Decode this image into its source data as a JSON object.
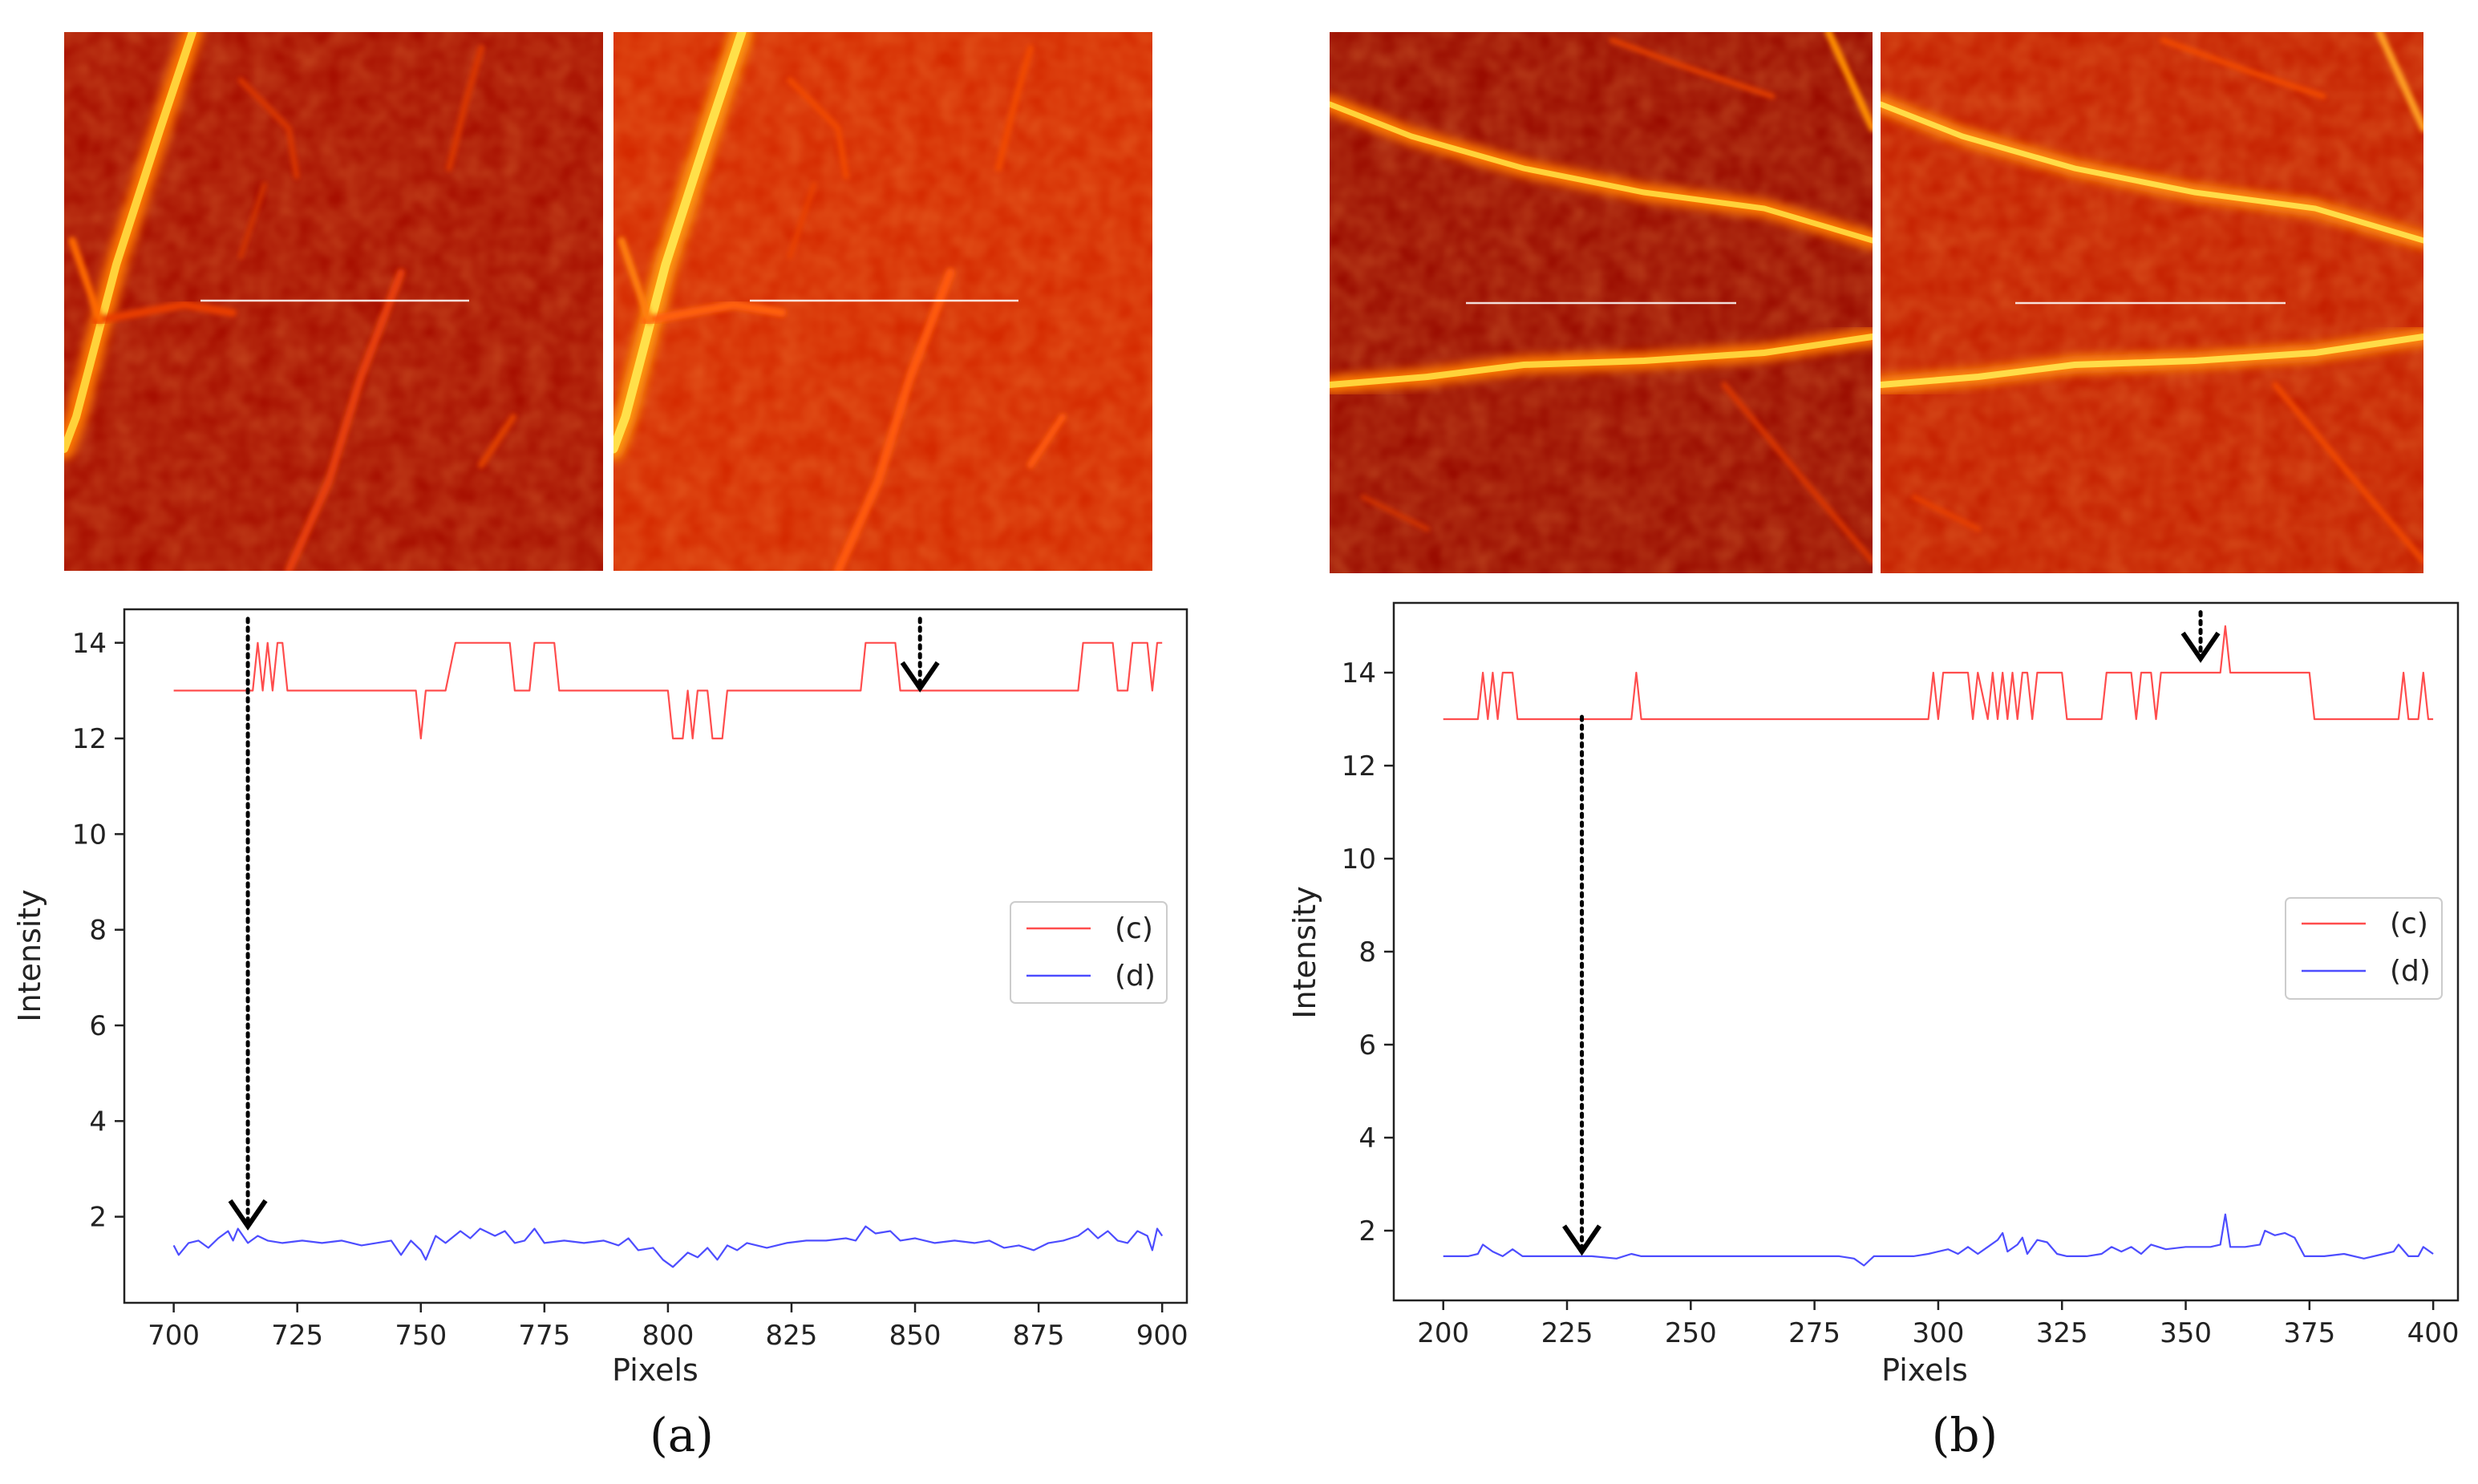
{
  "figure": {
    "captions": [
      "(a)",
      "(b)"
    ],
    "colors": {
      "c": "#ff4d4d",
      "d": "#4d4dff",
      "arrow": "#000000"
    }
  },
  "chart_data": [
    {
      "type": "line",
      "panel": "a",
      "caption": "(a)",
      "title": "",
      "xlabel": "Pixels",
      "ylabel": "Intensity",
      "xlim": [
        690,
        905
      ],
      "ylim": [
        0.2,
        14.7
      ],
      "xticks": [
        700,
        725,
        750,
        775,
        800,
        825,
        850,
        875,
        900
      ],
      "yticks": [
        2,
        4,
        6,
        8,
        10,
        12,
        14
      ],
      "legend": {
        "location": "center-right",
        "entries": [
          "(c)",
          "(d)"
        ]
      },
      "series": [
        {
          "name": "(c)",
          "color": "#ff4d4d",
          "points": [
            [
              700,
              13
            ],
            [
              716,
              13
            ],
            [
              717,
              14
            ],
            [
              718,
              13
            ],
            [
              719,
              14
            ],
            [
              720,
              13
            ],
            [
              721,
              14
            ],
            [
              722,
              14
            ],
            [
              723,
              13
            ],
            [
              749,
              13
            ],
            [
              750,
              12
            ],
            [
              751,
              13
            ],
            [
              755,
              13
            ],
            [
              757,
              14
            ],
            [
              768,
              14
            ],
            [
              769,
              13
            ],
            [
              772,
              13
            ],
            [
              773,
              14
            ],
            [
              777,
              14
            ],
            [
              778,
              13
            ],
            [
              800,
              13
            ],
            [
              801,
              12
            ],
            [
              803,
              12
            ],
            [
              804,
              13
            ],
            [
              805,
              12
            ],
            [
              806,
              13
            ],
            [
              808,
              13
            ],
            [
              809,
              12
            ],
            [
              811,
              12
            ],
            [
              812,
              13
            ],
            [
              839,
              13
            ],
            [
              840,
              14
            ],
            [
              846,
              14
            ],
            [
              847,
              13
            ],
            [
              883,
              13
            ],
            [
              884,
              14
            ],
            [
              890,
              14
            ],
            [
              891,
              13
            ],
            [
              893,
              13
            ],
            [
              894,
              14
            ],
            [
              897,
              14
            ],
            [
              898,
              13
            ],
            [
              899,
              14
            ],
            [
              900,
              14
            ]
          ]
        },
        {
          "name": "(d)",
          "color": "#4d4dff",
          "points": [
            [
              700,
              1.4
            ],
            [
              701,
              1.2
            ],
            [
              703,
              1.45
            ],
            [
              705,
              1.5
            ],
            [
              707,
              1.35
            ],
            [
              709,
              1.55
            ],
            [
              711,
              1.7
            ],
            [
              712,
              1.5
            ],
            [
              713,
              1.75
            ],
            [
              715,
              1.45
            ],
            [
              717,
              1.6
            ],
            [
              719,
              1.5
            ],
            [
              722,
              1.45
            ],
            [
              726,
              1.5
            ],
            [
              730,
              1.45
            ],
            [
              734,
              1.5
            ],
            [
              738,
              1.4
            ],
            [
              741,
              1.45
            ],
            [
              744,
              1.5
            ],
            [
              746,
              1.2
            ],
            [
              748,
              1.5
            ],
            [
              750,
              1.3
            ],
            [
              751,
              1.1
            ],
            [
              753,
              1.6
            ],
            [
              755,
              1.45
            ],
            [
              758,
              1.7
            ],
            [
              760,
              1.55
            ],
            [
              762,
              1.75
            ],
            [
              765,
              1.6
            ],
            [
              767,
              1.7
            ],
            [
              769,
              1.45
            ],
            [
              771,
              1.5
            ],
            [
              773,
              1.75
            ],
            [
              775,
              1.45
            ],
            [
              779,
              1.5
            ],
            [
              783,
              1.45
            ],
            [
              787,
              1.5
            ],
            [
              790,
              1.4
            ],
            [
              792,
              1.55
            ],
            [
              794,
              1.3
            ],
            [
              797,
              1.35
            ],
            [
              799,
              1.1
            ],
            [
              801,
              0.95
            ],
            [
              804,
              1.25
            ],
            [
              806,
              1.15
            ],
            [
              808,
              1.35
            ],
            [
              810,
              1.1
            ],
            [
              812,
              1.4
            ],
            [
              814,
              1.3
            ],
            [
              816,
              1.45
            ],
            [
              820,
              1.35
            ],
            [
              824,
              1.45
            ],
            [
              828,
              1.5
            ],
            [
              832,
              1.5
            ],
            [
              836,
              1.55
            ],
            [
              838,
              1.5
            ],
            [
              840,
              1.8
            ],
            [
              842,
              1.65
            ],
            [
              845,
              1.7
            ],
            [
              847,
              1.5
            ],
            [
              850,
              1.55
            ],
            [
              854,
              1.45
            ],
            [
              858,
              1.5
            ],
            [
              862,
              1.45
            ],
            [
              865,
              1.5
            ],
            [
              868,
              1.35
            ],
            [
              871,
              1.4
            ],
            [
              874,
              1.3
            ],
            [
              877,
              1.45
            ],
            [
              880,
              1.5
            ],
            [
              883,
              1.6
            ],
            [
              885,
              1.75
            ],
            [
              887,
              1.55
            ],
            [
              889,
              1.7
            ],
            [
              891,
              1.5
            ],
            [
              893,
              1.45
            ],
            [
              895,
              1.7
            ],
            [
              897,
              1.6
            ],
            [
              898,
              1.3
            ],
            [
              899,
              1.75
            ],
            [
              900,
              1.6
            ]
          ]
        }
      ],
      "annotations": [
        {
          "type": "arrow",
          "from_data": [
            715,
            14.5
          ],
          "to_data": [
            715,
            1.8
          ]
        },
        {
          "type": "arrow",
          "from_data": [
            851,
            14.5
          ],
          "to_data": [
            851,
            13.05
          ]
        }
      ]
    },
    {
      "type": "line",
      "panel": "b",
      "caption": "(b)",
      "title": "",
      "xlabel": "Pixels",
      "ylabel": "Intensity",
      "xlim": [
        190,
        405
      ],
      "ylim": [
        0.5,
        15.5
      ],
      "xticks": [
        200,
        225,
        250,
        275,
        300,
        325,
        350,
        375,
        400
      ],
      "yticks": [
        2,
        4,
        6,
        8,
        10,
        12,
        14
      ],
      "legend": {
        "location": "center-right",
        "entries": [
          "(c)",
          "(d)"
        ]
      },
      "series": [
        {
          "name": "(c)",
          "color": "#ff4d4d",
          "points": [
            [
              200,
              13
            ],
            [
              207,
              13
            ],
            [
              208,
              14
            ],
            [
              209,
              13
            ],
            [
              210,
              14
            ],
            [
              211,
              13
            ],
            [
              212,
              14
            ],
            [
              214,
              14
            ],
            [
              215,
              13
            ],
            [
              238,
              13
            ],
            [
              239,
              14
            ],
            [
              240,
              13
            ],
            [
              298,
              13
            ],
            [
              299,
              14
            ],
            [
              300,
              13
            ],
            [
              301,
              14
            ],
            [
              306,
              14
            ],
            [
              307,
              13
            ],
            [
              308,
              14
            ],
            [
              310,
              13
            ],
            [
              311,
              14
            ],
            [
              312,
              13
            ],
            [
              313,
              14
            ],
            [
              314,
              13
            ],
            [
              315,
              14
            ],
            [
              316,
              13
            ],
            [
              317,
              14
            ],
            [
              318,
              14
            ],
            [
              319,
              13
            ],
            [
              320,
              14
            ],
            [
              325,
              14
            ],
            [
              326,
              13
            ],
            [
              333,
              13
            ],
            [
              334,
              14
            ],
            [
              339,
              14
            ],
            [
              340,
              13
            ],
            [
              341,
              14
            ],
            [
              343,
              14
            ],
            [
              344,
              13
            ],
            [
              345,
              14
            ],
            [
              357,
              14
            ],
            [
              358,
              15
            ],
            [
              359,
              14
            ],
            [
              375,
              14
            ],
            [
              376,
              13
            ],
            [
              393,
              13
            ],
            [
              394,
              14
            ],
            [
              395,
              13
            ],
            [
              397,
              13
            ],
            [
              398,
              14
            ],
            [
              399,
              13
            ],
            [
              400,
              13
            ]
          ]
        },
        {
          "name": "(d)",
          "color": "#4d4dff",
          "points": [
            [
              200,
              1.45
            ],
            [
              205,
              1.45
            ],
            [
              207,
              1.5
            ],
            [
              208,
              1.7
            ],
            [
              210,
              1.55
            ],
            [
              212,
              1.45
            ],
            [
              214,
              1.6
            ],
            [
              216,
              1.45
            ],
            [
              220,
              1.45
            ],
            [
              225,
              1.45
            ],
            [
              230,
              1.45
            ],
            [
              235,
              1.4
            ],
            [
              238,
              1.5
            ],
            [
              240,
              1.45
            ],
            [
              245,
              1.45
            ],
            [
              250,
              1.45
            ],
            [
              255,
              1.45
            ],
            [
              260,
              1.45
            ],
            [
              265,
              1.45
            ],
            [
              270,
              1.45
            ],
            [
              275,
              1.45
            ],
            [
              280,
              1.45
            ],
            [
              283,
              1.4
            ],
            [
              285,
              1.25
            ],
            [
              287,
              1.45
            ],
            [
              290,
              1.45
            ],
            [
              295,
              1.45
            ],
            [
              298,
              1.5
            ],
            [
              300,
              1.55
            ],
            [
              302,
              1.6
            ],
            [
              304,
              1.5
            ],
            [
              306,
              1.65
            ],
            [
              308,
              1.5
            ],
            [
              310,
              1.65
            ],
            [
              312,
              1.8
            ],
            [
              313,
              1.95
            ],
            [
              314,
              1.55
            ],
            [
              316,
              1.7
            ],
            [
              317,
              1.85
            ],
            [
              318,
              1.5
            ],
            [
              320,
              1.8
            ],
            [
              322,
              1.75
            ],
            [
              324,
              1.5
            ],
            [
              326,
              1.45
            ],
            [
              330,
              1.45
            ],
            [
              333,
              1.5
            ],
            [
              335,
              1.65
            ],
            [
              337,
              1.55
            ],
            [
              339,
              1.65
            ],
            [
              341,
              1.5
            ],
            [
              343,
              1.7
            ],
            [
              346,
              1.6
            ],
            [
              350,
              1.65
            ],
            [
              355,
              1.65
            ],
            [
              357,
              1.7
            ],
            [
              358,
              2.35
            ],
            [
              359,
              1.65
            ],
            [
              362,
              1.65
            ],
            [
              365,
              1.7
            ],
            [
              366,
              2.0
            ],
            [
              368,
              1.9
            ],
            [
              370,
              1.95
            ],
            [
              372,
              1.85
            ],
            [
              374,
              1.45
            ],
            [
              378,
              1.45
            ],
            [
              382,
              1.5
            ],
            [
              386,
              1.4
            ],
            [
              390,
              1.5
            ],
            [
              392,
              1.55
            ],
            [
              393,
              1.7
            ],
            [
              395,
              1.45
            ],
            [
              397,
              1.45
            ],
            [
              398,
              1.65
            ],
            [
              400,
              1.5
            ]
          ]
        }
      ],
      "annotations": [
        {
          "type": "arrow",
          "from_data": [
            228,
            13.05
          ],
          "to_data": [
            228,
            1.55
          ]
        },
        {
          "type": "arrow",
          "from_data": [
            353,
            15.3
          ],
          "to_data": [
            353,
            14.3
          ]
        }
      ]
    }
  ]
}
